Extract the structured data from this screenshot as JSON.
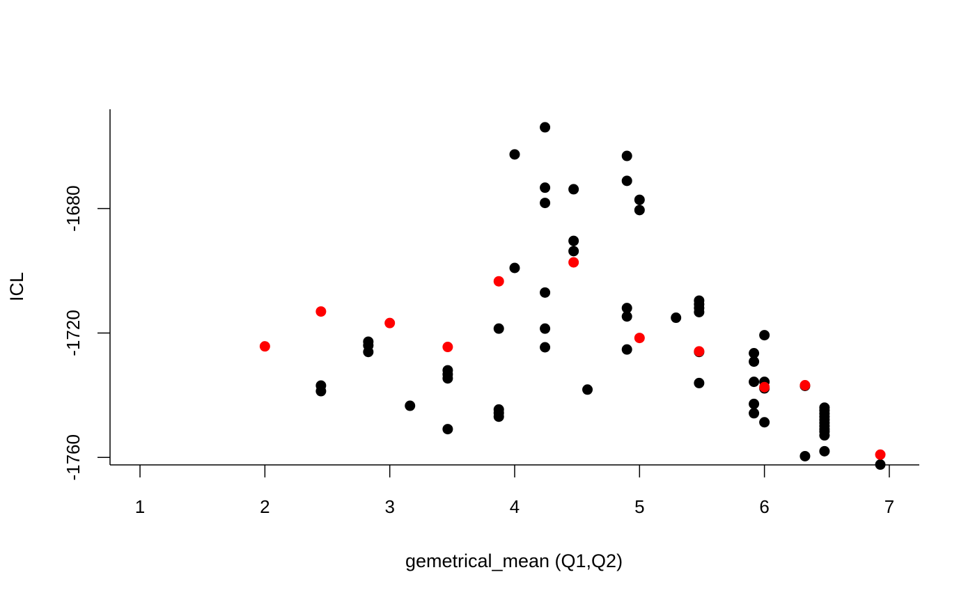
{
  "chart_data": {
    "type": "scatter",
    "title": "",
    "xlabel": "gemetrical_mean (Q1,Q2)",
    "ylabel": "ICL",
    "xlim": [
      0.76,
      7.24
    ],
    "ylim": [
      -1762.4,
      -1648.1
    ],
    "x_ticks": [
      1,
      2,
      3,
      4,
      5,
      6,
      7
    ],
    "x_tick_labels": [
      "1",
      "2",
      "3",
      "4",
      "5",
      "6",
      "7"
    ],
    "y_ticks": [
      -1760,
      -1720,
      -1680
    ],
    "y_tick_labels": [
      "-1760",
      "-1720",
      "-1680"
    ],
    "grid": false,
    "legend": "none",
    "colors": {
      "series_a": "#000000",
      "series_b": "#ff0000"
    },
    "series": [
      {
        "color": "#000000",
        "points": [
          [
            2.449,
            -1736.9
          ],
          [
            2.449,
            -1738.7
          ],
          [
            2.828,
            -1722.8
          ],
          [
            2.828,
            -1724.0
          ],
          [
            2.828,
            -1726.1
          ],
          [
            3.162,
            -1743.4
          ],
          [
            3.464,
            -1732.0
          ],
          [
            3.464,
            -1733.3
          ],
          [
            3.464,
            -1734.6
          ],
          [
            3.464,
            -1750.9
          ],
          [
            3.873,
            -1718.6
          ],
          [
            3.873,
            -1744.6
          ],
          [
            3.873,
            -1745.7
          ],
          [
            3.873,
            -1746.9
          ],
          [
            4.0,
            -1662.6
          ],
          [
            4.0,
            -1699.1
          ],
          [
            4.243,
            -1653.9
          ],
          [
            4.243,
            -1673.3
          ],
          [
            4.243,
            -1678.2
          ],
          [
            4.243,
            -1707.0
          ],
          [
            4.243,
            -1718.6
          ],
          [
            4.243,
            -1724.6
          ],
          [
            4.472,
            -1673.8
          ],
          [
            4.472,
            -1690.4
          ],
          [
            4.472,
            -1693.7
          ],
          [
            4.583,
            -1738.2
          ],
          [
            4.899,
            -1663.1
          ],
          [
            4.899,
            -1671.1
          ],
          [
            4.899,
            -1712.0
          ],
          [
            4.899,
            -1714.7
          ],
          [
            4.899,
            -1725.3
          ],
          [
            5.0,
            -1677.2
          ],
          [
            5.0,
            -1680.5
          ],
          [
            5.292,
            -1715.1
          ],
          [
            5.477,
            -1709.6
          ],
          [
            5.477,
            -1710.8
          ],
          [
            5.477,
            -1712.0
          ],
          [
            5.477,
            -1713.3
          ],
          [
            5.477,
            -1726.1
          ],
          [
            5.477,
            -1736.1
          ],
          [
            5.916,
            -1726.5
          ],
          [
            5.916,
            -1729.2
          ],
          [
            5.916,
            -1735.7
          ],
          [
            5.916,
            -1742.8
          ],
          [
            5.916,
            -1745.8
          ],
          [
            6.0,
            -1720.7
          ],
          [
            6.0,
            -1735.7
          ],
          [
            6.0,
            -1737.8
          ],
          [
            6.0,
            -1748.7
          ],
          [
            6.325,
            -1737.0
          ],
          [
            6.325,
            -1759.6
          ],
          [
            6.481,
            -1744.0
          ],
          [
            6.481,
            -1744.9
          ],
          [
            6.481,
            -1745.9
          ],
          [
            6.481,
            -1746.9
          ],
          [
            6.481,
            -1747.9
          ],
          [
            6.481,
            -1748.9
          ],
          [
            6.481,
            -1749.9
          ],
          [
            6.481,
            -1750.9
          ],
          [
            6.481,
            -1751.7
          ],
          [
            6.481,
            -1752.9
          ],
          [
            6.481,
            -1758.0
          ],
          [
            6.928,
            -1762.3
          ]
        ]
      },
      {
        "color": "#ff0000",
        "points": [
          [
            2.0,
            -1724.3
          ],
          [
            2.449,
            -1713.1
          ],
          [
            3.0,
            -1716.8
          ],
          [
            3.464,
            -1724.5
          ],
          [
            3.873,
            -1703.4
          ],
          [
            4.472,
            -1697.3
          ],
          [
            5.0,
            -1721.6
          ],
          [
            5.477,
            -1725.9
          ],
          [
            6.0,
            -1737.4
          ],
          [
            6.325,
            -1736.8
          ],
          [
            6.928,
            -1759.1
          ]
        ]
      }
    ]
  }
}
